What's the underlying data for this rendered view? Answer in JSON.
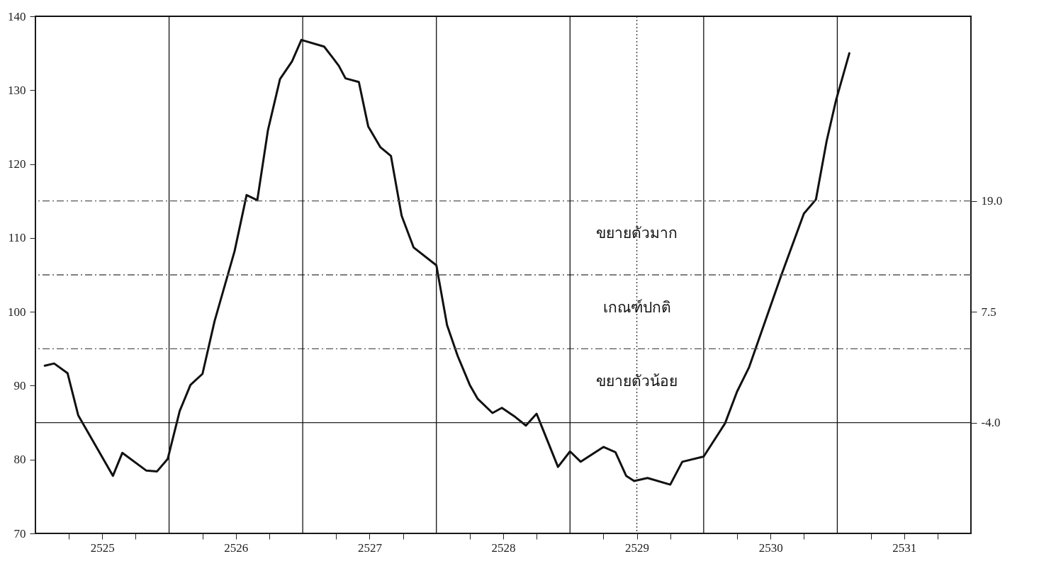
{
  "chart_data": {
    "type": "line",
    "series": [
      {
        "color": "#111111",
        "x": [
          2525.07,
          2525.14,
          2525.24,
          2525.32,
          2525.58,
          2525.65,
          2525.83,
          2525.91,
          2525.99,
          2526.08,
          2526.16,
          2526.25,
          2526.34,
          2526.49,
          2526.58,
          2526.66,
          2526.74,
          2526.83,
          2526.92,
          2526.99,
          2527.16,
          2527.22,
          2527.27,
          2527.32,
          2527.42,
          2527.49,
          2527.58,
          2527.66,
          2527.74,
          2527.83,
          2528.0,
          2528.08,
          2528.16,
          2528.25,
          2528.31,
          2528.42,
          2528.49,
          2528.58,
          2528.67,
          2528.75,
          2528.91,
          2529.0,
          2529.08,
          2529.25,
          2529.34,
          2529.42,
          2529.48,
          2529.58,
          2529.75,
          2529.84,
          2530.0,
          2530.16,
          2530.25,
          2530.34,
          2530.58,
          2530.75,
          2530.84,
          2530.92,
          2530.99,
          2531.09
        ],
        "values": [
          92.7,
          93.0,
          91.7,
          86.0,
          77.8,
          80.9,
          78.5,
          78.4,
          80.1,
          86.6,
          90.1,
          91.6,
          98.7,
          108.2,
          115.8,
          115.1,
          124.6,
          131.5,
          133.9,
          136.8,
          135.9,
          134.5,
          133.3,
          131.6,
          131.1,
          125.1,
          122.3,
          121.1,
          113.0,
          108.7,
          106.3,
          98.2,
          94.0,
          90.1,
          88.2,
          86.3,
          87.0,
          85.9,
          84.6,
          86.2,
          79.0,
          81.1,
          79.7,
          81.7,
          81.0,
          77.8,
          77.1,
          77.5,
          76.6,
          79.7,
          80.4,
          84.9,
          89.2,
          92.5,
          104.9,
          113.3,
          115.2,
          123.1,
          128.6,
          135.0
        ]
      }
    ],
    "xlim": [
      2525,
      2532
    ],
    "xticks": [
      {
        "value": 2525.25,
        "label": null
      },
      {
        "value": 2525.5,
        "label": "2525"
      },
      {
        "value": 2525.75,
        "label": null
      },
      {
        "value": 2526.25,
        "label": null
      },
      {
        "value": 2526.5,
        "label": "2526"
      },
      {
        "value": 2526.75,
        "label": null
      },
      {
        "value": 2527.25,
        "label": null
      },
      {
        "value": 2527.5,
        "label": "2527"
      },
      {
        "value": 2527.75,
        "label": null
      },
      {
        "value": 2528.25,
        "label": null
      },
      {
        "value": 2528.5,
        "label": "2528"
      },
      {
        "value": 2528.75,
        "label": null
      },
      {
        "value": 2529.25,
        "label": null
      },
      {
        "value": 2529.5,
        "label": "2529"
      },
      {
        "value": 2529.75,
        "label": null
      },
      {
        "value": 2530.25,
        "label": null
      },
      {
        "value": 2530.5,
        "label": "2530"
      },
      {
        "value": 2530.75,
        "label": null
      },
      {
        "value": 2531.25,
        "label": null
      },
      {
        "value": 2531.5,
        "label": "2531"
      },
      {
        "value": 2531.75,
        "label": null
      }
    ],
    "ylim": [
      70,
      140
    ],
    "yticks": [
      70,
      80,
      90,
      100,
      110,
      120,
      130,
      140
    ],
    "y2lim": [
      -15.5,
      38.17
    ],
    "y2ticks": [
      {
        "value": -4,
        "label": "-4.0"
      },
      {
        "value": 7.5,
        "label": "7.5"
      },
      {
        "value": 19,
        "label": "19.0"
      }
    ],
    "ref_lines": [
      {
        "axis": "x",
        "value": 2526,
        "color": "#111111",
        "line_style": "solid"
      },
      {
        "axis": "x",
        "value": 2527,
        "color": "#111111",
        "line_style": "solid"
      },
      {
        "axis": "x",
        "value": 2528,
        "color": "#111111",
        "line_style": "solid"
      },
      {
        "axis": "x",
        "value": 2529,
        "color": "#111111",
        "line_style": "solid"
      },
      {
        "axis": "x",
        "value": 2530,
        "color": "#111111",
        "line_style": "solid"
      },
      {
        "axis": "x",
        "value": 2531,
        "color": "#111111",
        "line_style": "solid"
      },
      {
        "axis": "x",
        "value": 2529.5,
        "color": "#333333",
        "line_style": "dotted"
      },
      {
        "axis": "y",
        "value": 115,
        "color": "#555555",
        "line_style": "dashed"
      },
      {
        "axis": "y",
        "value": 105,
        "color": "#555555",
        "line_style": "dashed"
      },
      {
        "axis": "y",
        "value": 95,
        "color": "#555555",
        "line_style": "dashed"
      },
      {
        "axis": "y",
        "value": 85,
        "color": "#222222",
        "line_style": "solid"
      }
    ],
    "annotations": [
      "ขยายตัวมาก",
      "เกณฑ์ปกติ",
      "ขยายตัวน้อย"
    ],
    "grid": false,
    "line_style": "solid"
  }
}
